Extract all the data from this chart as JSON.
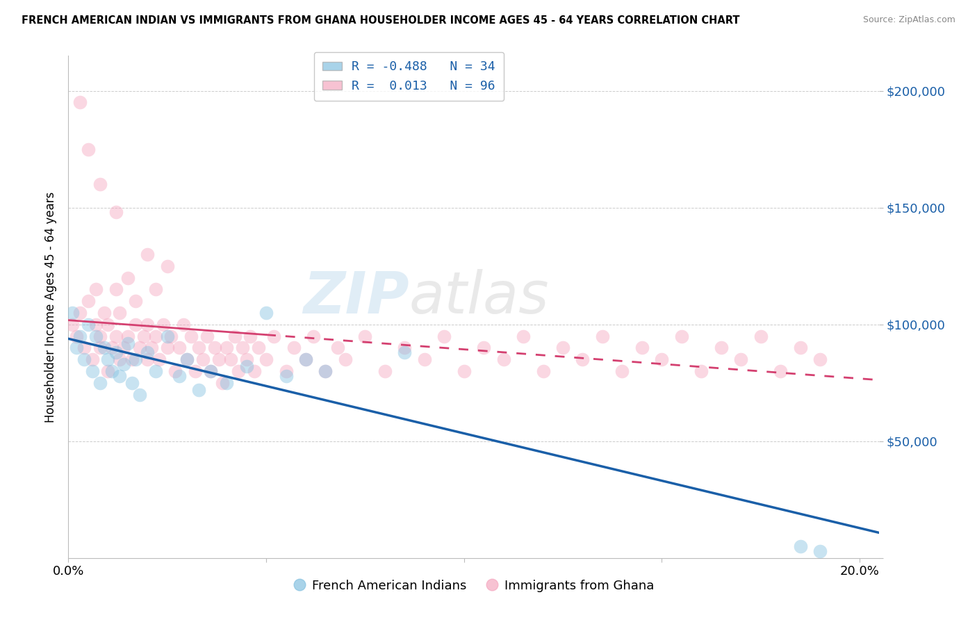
{
  "title": "FRENCH AMERICAN INDIAN VS IMMIGRANTS FROM GHANA HOUSEHOLDER INCOME AGES 45 - 64 YEARS CORRELATION CHART",
  "source": "Source: ZipAtlas.com",
  "ylabel": "Householder Income Ages 45 - 64 years",
  "legend_label_blue": "French American Indians",
  "legend_label_pink": "Immigrants from Ghana",
  "r_blue": -0.488,
  "n_blue": 34,
  "r_pink": 0.013,
  "n_pink": 96,
  "color_blue": "#85c1e0",
  "color_pink": "#f5a8c0",
  "line_color_blue": "#1a5fa8",
  "line_color_pink": "#d44070",
  "watermark_zip": "ZIP",
  "watermark_atlas": "atlas",
  "xlim": [
    0.0,
    0.205
  ],
  "ylim": [
    0,
    215000
  ],
  "ytick_vals": [
    0,
    50000,
    100000,
    150000,
    200000
  ],
  "ytick_labels": [
    "",
    "$50,000",
    "$100,000",
    "$150,000",
    "$200,000"
  ],
  "xtick_vals": [
    0.0,
    0.05,
    0.1,
    0.15,
    0.2
  ],
  "xtick_labels": [
    "0.0%",
    "",
    "",
    "",
    "20.0%"
  ],
  "blue_x": [
    0.001,
    0.002,
    0.003,
    0.004,
    0.005,
    0.006,
    0.007,
    0.008,
    0.009,
    0.01,
    0.011,
    0.012,
    0.013,
    0.014,
    0.015,
    0.016,
    0.017,
    0.018,
    0.02,
    0.022,
    0.025,
    0.028,
    0.03,
    0.033,
    0.036,
    0.04,
    0.045,
    0.05,
    0.055,
    0.06,
    0.065,
    0.085,
    0.185,
    0.19
  ],
  "blue_y": [
    105000,
    90000,
    95000,
    85000,
    100000,
    80000,
    95000,
    75000,
    90000,
    85000,
    80000,
    88000,
    78000,
    83000,
    92000,
    75000,
    85000,
    70000,
    88000,
    80000,
    95000,
    78000,
    85000,
    72000,
    80000,
    75000,
    82000,
    105000,
    78000,
    85000,
    80000,
    88000,
    5000,
    3000
  ],
  "pink_x": [
    0.001,
    0.002,
    0.003,
    0.004,
    0.005,
    0.006,
    0.007,
    0.007,
    0.008,
    0.008,
    0.009,
    0.01,
    0.01,
    0.011,
    0.012,
    0.012,
    0.013,
    0.013,
    0.014,
    0.015,
    0.015,
    0.016,
    0.017,
    0.017,
    0.018,
    0.019,
    0.02,
    0.02,
    0.021,
    0.022,
    0.022,
    0.023,
    0.024,
    0.025,
    0.026,
    0.027,
    0.028,
    0.029,
    0.03,
    0.031,
    0.032,
    0.033,
    0.034,
    0.035,
    0.036,
    0.037,
    0.038,
    0.039,
    0.04,
    0.041,
    0.042,
    0.043,
    0.044,
    0.045,
    0.046,
    0.047,
    0.048,
    0.05,
    0.052,
    0.055,
    0.057,
    0.06,
    0.062,
    0.065,
    0.068,
    0.07,
    0.075,
    0.08,
    0.085,
    0.09,
    0.095,
    0.1,
    0.105,
    0.11,
    0.115,
    0.12,
    0.125,
    0.13,
    0.135,
    0.14,
    0.145,
    0.15,
    0.155,
    0.16,
    0.165,
    0.17,
    0.175,
    0.18,
    0.185,
    0.19,
    0.003,
    0.005,
    0.008,
    0.012,
    0.02,
    0.025
  ],
  "pink_y": [
    100000,
    95000,
    105000,
    90000,
    110000,
    85000,
    100000,
    115000,
    90000,
    95000,
    105000,
    80000,
    100000,
    90000,
    95000,
    115000,
    85000,
    105000,
    90000,
    95000,
    120000,
    85000,
    100000,
    110000,
    90000,
    95000,
    85000,
    100000,
    90000,
    115000,
    95000,
    85000,
    100000,
    90000,
    95000,
    80000,
    90000,
    100000,
    85000,
    95000,
    80000,
    90000,
    85000,
    95000,
    80000,
    90000,
    85000,
    75000,
    90000,
    85000,
    95000,
    80000,
    90000,
    85000,
    95000,
    80000,
    90000,
    85000,
    95000,
    80000,
    90000,
    85000,
    95000,
    80000,
    90000,
    85000,
    95000,
    80000,
    90000,
    85000,
    95000,
    80000,
    90000,
    85000,
    95000,
    80000,
    90000,
    85000,
    95000,
    80000,
    90000,
    85000,
    95000,
    80000,
    90000,
    85000,
    95000,
    80000,
    90000,
    85000,
    195000,
    175000,
    160000,
    148000,
    130000,
    125000
  ]
}
